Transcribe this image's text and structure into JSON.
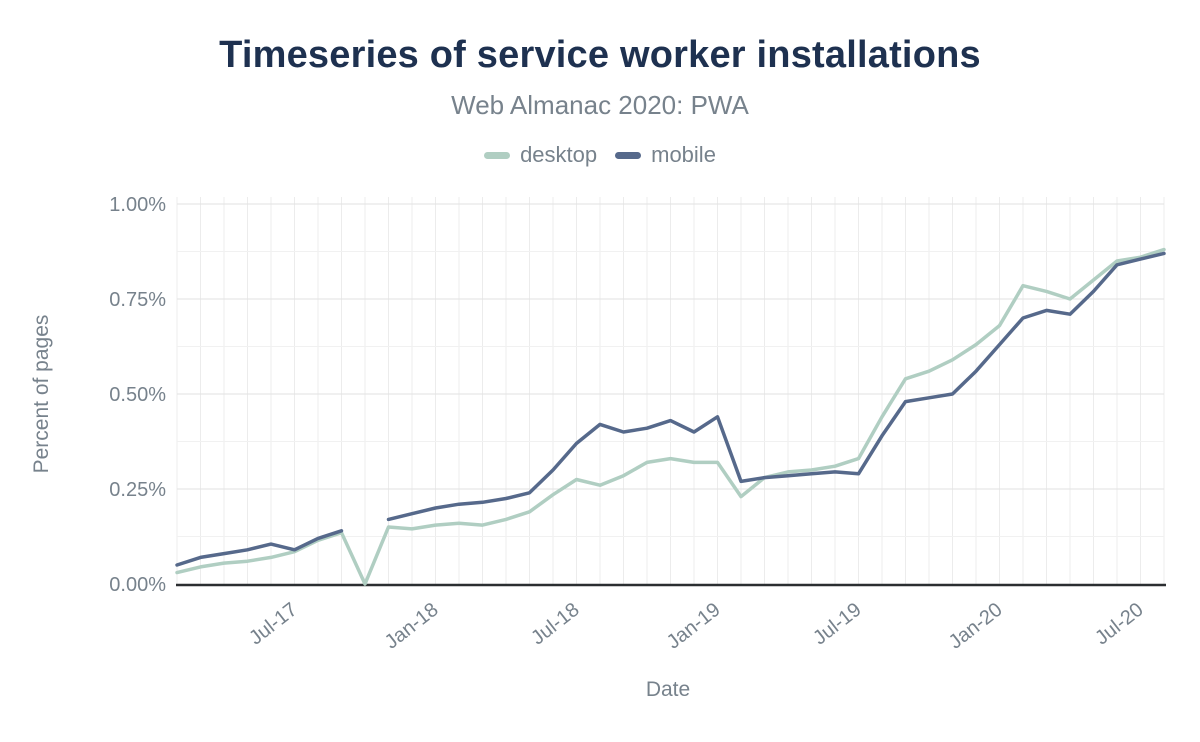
{
  "header": {
    "title": "Timeseries of service worker installations",
    "subtitle": "Web Almanac 2020: PWA"
  },
  "colors": {
    "title_text": "#1e3150",
    "muted_text": "#77828c",
    "axis_line": "#2b2e31",
    "grid_major": "#e2e2e2",
    "grid_minor": "#f1f1f1",
    "grid_vertical": "#ececec",
    "desktop_series": "#b0cec2",
    "mobile_series": "#56698b"
  },
  "chart_data": {
    "type": "line",
    "title": "Timeseries of service worker installations",
    "subtitle": "Web Almanac 2020: PWA",
    "xlabel": "Date",
    "ylabel": "Percent of pages",
    "legend_position": "top",
    "grid": "monthly vertical lines; horizontal major every 0.25%, minor every 0.125%",
    "ylim": [
      0,
      1.0
    ],
    "y_tick_labels": [
      "0.00%",
      "0.25%",
      "0.50%",
      "0.75%",
      "1.00%"
    ],
    "y_tick_values": [
      0,
      0.25,
      0.5,
      0.75,
      1.0
    ],
    "y_minor_tick_values": [
      0.125,
      0.375,
      0.625,
      0.875
    ],
    "x": [
      "Feb-17",
      "Mar-17",
      "Apr-17",
      "May-17",
      "Jun-17",
      "Jul-17",
      "Aug-17",
      "Sep-17",
      "Oct-17",
      "Nov-17",
      "Dec-17",
      "Jan-18",
      "Feb-18",
      "Mar-18",
      "Apr-18",
      "May-18",
      "Jun-18",
      "Jul-18",
      "Aug-18",
      "Sep-18",
      "Oct-18",
      "Nov-18",
      "Dec-18",
      "Jan-19",
      "Feb-19",
      "Mar-19",
      "Apr-19",
      "May-19",
      "Jun-19",
      "Jul-19",
      "Aug-19",
      "Sep-19",
      "Oct-19",
      "Nov-19",
      "Dec-19",
      "Jan-20",
      "Feb-20",
      "Mar-20",
      "Apr-20",
      "May-20",
      "Jun-20",
      "Jul-20",
      "Aug-20"
    ],
    "x_tick_labels": [
      {
        "label": "Jul-17",
        "index": 5
      },
      {
        "label": "Jan-18",
        "index": 11
      },
      {
        "label": "Jul-18",
        "index": 17
      },
      {
        "label": "Jan-19",
        "index": 23
      },
      {
        "label": "Jul-19",
        "index": 29
      },
      {
        "label": "Jan-20",
        "index": 35
      },
      {
        "label": "Jul-20",
        "index": 41
      }
    ],
    "unit": "percent of pages",
    "series": [
      {
        "name": "desktop",
        "color": "#b0cec2",
        "values": [
          0.03,
          0.045,
          0.055,
          0.06,
          0.07,
          0.085,
          0.115,
          0.135,
          0.0,
          0.15,
          0.145,
          0.155,
          0.16,
          0.155,
          0.17,
          0.19,
          0.235,
          0.275,
          0.26,
          0.285,
          0.32,
          0.33,
          0.32,
          0.32,
          0.23,
          0.28,
          0.295,
          0.3,
          0.31,
          0.33,
          0.44,
          0.54,
          0.56,
          0.59,
          0.63,
          0.68,
          0.785,
          0.77,
          0.75,
          0.8,
          0.85,
          0.86,
          0.88
        ]
      },
      {
        "name": "mobile",
        "color": "#56698b",
        "values": [
          0.05,
          0.07,
          0.08,
          0.09,
          0.105,
          0.09,
          0.12,
          0.14,
          null,
          0.17,
          0.185,
          0.2,
          0.21,
          0.215,
          0.225,
          0.24,
          0.3,
          0.37,
          0.42,
          0.4,
          0.41,
          0.43,
          0.4,
          0.44,
          0.27,
          0.28,
          0.285,
          0.29,
          0.295,
          0.29,
          0.39,
          0.48,
          0.49,
          0.5,
          0.56,
          0.63,
          0.7,
          0.72,
          0.71,
          0.77,
          0.84,
          0.855,
          0.87
        ]
      }
    ]
  }
}
